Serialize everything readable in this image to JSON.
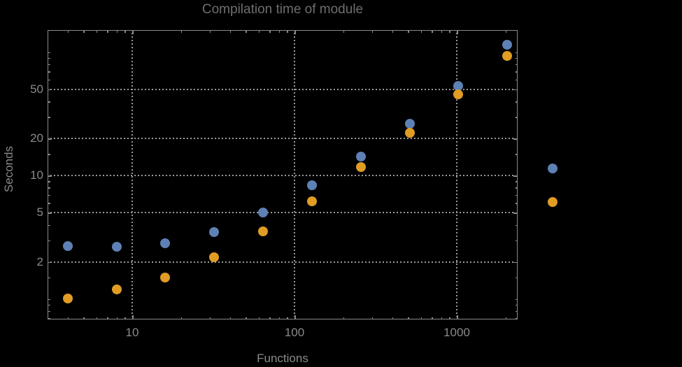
{
  "chart_data": {
    "type": "scatter",
    "title": "Compilation time of module",
    "xlabel": "Functions",
    "ylabel": "Seconds",
    "xscale": "log",
    "yscale": "log",
    "xlim": [
      3.0,
      2370
    ],
    "ylim": [
      0.68,
      150
    ],
    "grid": true,
    "grid_style": "dotted",
    "x": [
      4,
      8,
      16,
      32,
      64,
      128,
      256,
      512,
      1024,
      2048
    ],
    "series": [
      {
        "label": "",
        "color": "#5e81b5",
        "values": [
          2.7,
          2.67,
          2.83,
          3.5,
          5.05,
          8.35,
          14.2,
          26.4,
          53.5,
          115
        ]
      },
      {
        "label": "",
        "color": "#e19c24",
        "values": [
          1.01,
          1.19,
          1.5,
          2.19,
          3.52,
          6.2,
          11.8,
          22.2,
          45.5,
          94
        ]
      }
    ],
    "x_axis": {
      "major_ticks": [
        {
          "value": 10,
          "label": "10"
        },
        {
          "value": 100,
          "label": "100"
        },
        {
          "value": 1000,
          "label": "1000"
        }
      ],
      "minor_ticks": [
        4,
        5,
        6,
        7,
        8,
        9,
        20,
        30,
        40,
        50,
        60,
        70,
        80,
        90,
        200,
        300,
        400,
        500,
        600,
        700,
        800,
        900,
        2000
      ]
    },
    "y_axis": {
      "major_ticks": [
        {
          "value": 2,
          "label": "2"
        },
        {
          "value": 5,
          "label": "5"
        },
        {
          "value": 10,
          "label": "10"
        },
        {
          "value": 20,
          "label": "20"
        },
        {
          "value": 50,
          "label": "50"
        }
      ],
      "minor_ticks": [
        0.7,
        0.8,
        0.9,
        1,
        1.5,
        3,
        4,
        6,
        7,
        8,
        9,
        15,
        30,
        40,
        60,
        70,
        80,
        90,
        100
      ]
    },
    "legend_position": "right"
  },
  "colors": {
    "background": "#000000",
    "frame": "#8a8a8a",
    "grid": "#999999",
    "title_text": "#6e6e6e",
    "axis_text": "#8a8a8a",
    "series1": "#5e81b5",
    "series2": "#e19c24"
  }
}
